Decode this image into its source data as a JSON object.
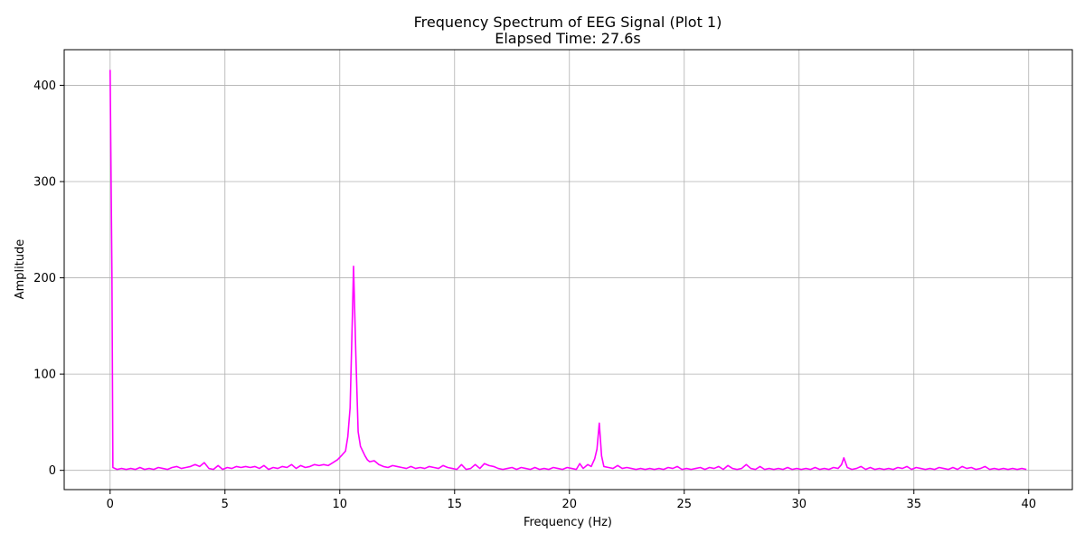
{
  "chart_data": {
    "type": "line",
    "title": "Frequency Spectrum of EEG Signal (Plot 1)",
    "subtitle": "Elapsed Time: 27.6s",
    "xlabel": "Frequency (Hz)",
    "ylabel": "Amplitude",
    "xlim": [
      -2,
      41.9
    ],
    "ylim": [
      -20,
      437
    ],
    "xticks": [
      0,
      5,
      10,
      15,
      20,
      25,
      30,
      35,
      40
    ],
    "yticks": [
      0,
      100,
      200,
      300,
      400
    ],
    "grid": true,
    "series": [
      {
        "color": "#ff00ff",
        "points": [
          [
            0.0,
            416
          ],
          [
            0.08,
            200
          ],
          [
            0.12,
            3
          ],
          [
            0.3,
            1
          ],
          [
            0.5,
            2
          ],
          [
            0.7,
            1
          ],
          [
            0.9,
            2
          ],
          [
            1.1,
            1
          ],
          [
            1.3,
            3
          ],
          [
            1.5,
            1
          ],
          [
            1.7,
            2
          ],
          [
            1.9,
            1
          ],
          [
            2.1,
            3
          ],
          [
            2.3,
            2
          ],
          [
            2.5,
            1
          ],
          [
            2.7,
            3
          ],
          [
            2.9,
            4
          ],
          [
            3.1,
            2
          ],
          [
            3.3,
            3
          ],
          [
            3.5,
            4
          ],
          [
            3.7,
            6
          ],
          [
            3.9,
            4
          ],
          [
            4.1,
            8
          ],
          [
            4.3,
            2
          ],
          [
            4.5,
            1
          ],
          [
            4.7,
            5
          ],
          [
            4.9,
            1
          ],
          [
            5.1,
            3
          ],
          [
            5.3,
            2
          ],
          [
            5.5,
            4
          ],
          [
            5.7,
            3
          ],
          [
            5.9,
            4
          ],
          [
            6.1,
            3
          ],
          [
            6.3,
            4
          ],
          [
            6.5,
            2
          ],
          [
            6.7,
            5
          ],
          [
            6.9,
            1
          ],
          [
            7.1,
            3
          ],
          [
            7.3,
            2
          ],
          [
            7.5,
            4
          ],
          [
            7.7,
            3
          ],
          [
            7.9,
            6
          ],
          [
            8.1,
            2
          ],
          [
            8.3,
            5
          ],
          [
            8.5,
            3
          ],
          [
            8.7,
            4
          ],
          [
            8.9,
            6
          ],
          [
            9.1,
            5
          ],
          [
            9.3,
            6
          ],
          [
            9.5,
            5
          ],
          [
            9.7,
            8
          ],
          [
            9.9,
            11
          ],
          [
            10.1,
            16
          ],
          [
            10.25,
            20
          ],
          [
            10.35,
            35
          ],
          [
            10.45,
            65
          ],
          [
            10.55,
            160
          ],
          [
            10.6,
            212
          ],
          [
            10.7,
            120
          ],
          [
            10.8,
            40
          ],
          [
            10.9,
            25
          ],
          [
            11.0,
            20
          ],
          [
            11.1,
            15
          ],
          [
            11.2,
            11
          ],
          [
            11.3,
            9
          ],
          [
            11.5,
            10
          ],
          [
            11.7,
            6
          ],
          [
            11.9,
            4
          ],
          [
            12.1,
            3
          ],
          [
            12.3,
            5
          ],
          [
            12.5,
            4
          ],
          [
            12.7,
            3
          ],
          [
            12.9,
            2
          ],
          [
            13.1,
            4
          ],
          [
            13.3,
            2
          ],
          [
            13.5,
            3
          ],
          [
            13.7,
            2
          ],
          [
            13.9,
            4
          ],
          [
            14.1,
            3
          ],
          [
            14.3,
            2
          ],
          [
            14.5,
            5
          ],
          [
            14.7,
            3
          ],
          [
            14.9,
            2
          ],
          [
            15.1,
            1
          ],
          [
            15.3,
            6
          ],
          [
            15.5,
            1
          ],
          [
            15.7,
            2
          ],
          [
            15.9,
            6
          ],
          [
            16.1,
            2
          ],
          [
            16.3,
            7
          ],
          [
            16.5,
            5
          ],
          [
            16.7,
            4
          ],
          [
            16.9,
            2
          ],
          [
            17.1,
            1
          ],
          [
            17.3,
            2
          ],
          [
            17.5,
            3
          ],
          [
            17.7,
            1
          ],
          [
            17.9,
            3
          ],
          [
            18.1,
            2
          ],
          [
            18.3,
            1
          ],
          [
            18.5,
            3
          ],
          [
            18.7,
            1
          ],
          [
            18.9,
            2
          ],
          [
            19.1,
            1
          ],
          [
            19.3,
            3
          ],
          [
            19.5,
            2
          ],
          [
            19.7,
            1
          ],
          [
            19.9,
            3
          ],
          [
            20.1,
            2
          ],
          [
            20.3,
            1
          ],
          [
            20.45,
            7
          ],
          [
            20.6,
            2
          ],
          [
            20.8,
            6
          ],
          [
            20.95,
            4
          ],
          [
            21.1,
            12
          ],
          [
            21.2,
            22
          ],
          [
            21.3,
            49
          ],
          [
            21.4,
            15
          ],
          [
            21.5,
            4
          ],
          [
            21.7,
            3
          ],
          [
            21.9,
            2
          ],
          [
            22.1,
            5
          ],
          [
            22.3,
            2
          ],
          [
            22.5,
            3
          ],
          [
            22.7,
            2
          ],
          [
            22.9,
            1
          ],
          [
            23.1,
            2
          ],
          [
            23.3,
            1
          ],
          [
            23.5,
            2
          ],
          [
            23.7,
            1
          ],
          [
            23.9,
            2
          ],
          [
            24.1,
            1
          ],
          [
            24.3,
            3
          ],
          [
            24.5,
            2
          ],
          [
            24.7,
            4
          ],
          [
            24.9,
            1
          ],
          [
            25.1,
            2
          ],
          [
            25.3,
            1
          ],
          [
            25.5,
            2
          ],
          [
            25.7,
            3
          ],
          [
            25.9,
            1
          ],
          [
            26.1,
            3
          ],
          [
            26.3,
            2
          ],
          [
            26.5,
            4
          ],
          [
            26.7,
            1
          ],
          [
            26.9,
            5
          ],
          [
            27.1,
            2
          ],
          [
            27.3,
            1
          ],
          [
            27.5,
            2
          ],
          [
            27.7,
            6
          ],
          [
            27.9,
            2
          ],
          [
            28.1,
            1
          ],
          [
            28.3,
            4
          ],
          [
            28.5,
            1
          ],
          [
            28.7,
            2
          ],
          [
            28.9,
            1
          ],
          [
            29.1,
            2
          ],
          [
            29.3,
            1
          ],
          [
            29.5,
            3
          ],
          [
            29.7,
            1
          ],
          [
            29.9,
            2
          ],
          [
            30.1,
            1
          ],
          [
            30.3,
            2
          ],
          [
            30.5,
            1
          ],
          [
            30.7,
            3
          ],
          [
            30.9,
            1
          ],
          [
            31.1,
            2
          ],
          [
            31.3,
            1
          ],
          [
            31.5,
            3
          ],
          [
            31.7,
            2
          ],
          [
            31.85,
            6
          ],
          [
            31.95,
            13
          ],
          [
            32.1,
            3
          ],
          [
            32.3,
            1
          ],
          [
            32.5,
            2
          ],
          [
            32.7,
            4
          ],
          [
            32.9,
            1
          ],
          [
            33.1,
            3
          ],
          [
            33.3,
            1
          ],
          [
            33.5,
            2
          ],
          [
            33.7,
            1
          ],
          [
            33.9,
            2
          ],
          [
            34.1,
            1
          ],
          [
            34.3,
            3
          ],
          [
            34.5,
            2
          ],
          [
            34.7,
            4
          ],
          [
            34.9,
            1
          ],
          [
            35.1,
            3
          ],
          [
            35.3,
            2
          ],
          [
            35.5,
            1
          ],
          [
            35.7,
            2
          ],
          [
            35.9,
            1
          ],
          [
            36.1,
            3
          ],
          [
            36.3,
            2
          ],
          [
            36.5,
            1
          ],
          [
            36.7,
            3
          ],
          [
            36.9,
            1
          ],
          [
            37.1,
            4
          ],
          [
            37.3,
            2
          ],
          [
            37.5,
            3
          ],
          [
            37.7,
            1
          ],
          [
            37.9,
            2
          ],
          [
            38.1,
            4
          ],
          [
            38.3,
            1
          ],
          [
            38.5,
            2
          ],
          [
            38.7,
            1
          ],
          [
            38.9,
            2
          ],
          [
            39.1,
            1
          ],
          [
            39.3,
            2
          ],
          [
            39.5,
            1
          ],
          [
            39.7,
            2
          ],
          [
            39.9,
            1
          ]
        ]
      }
    ]
  }
}
